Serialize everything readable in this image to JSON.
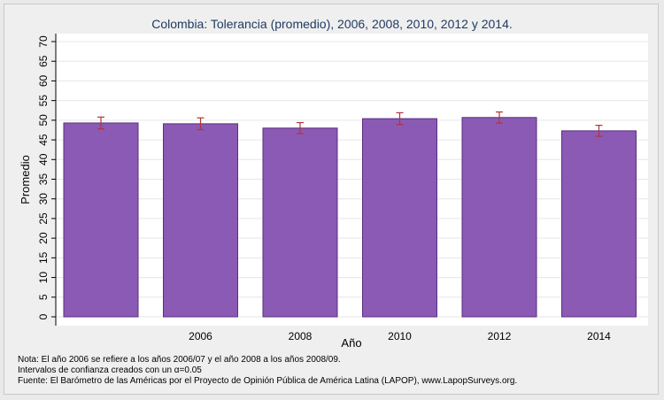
{
  "chart_data": {
    "type": "bar",
    "title": "Colombia: Tolerancia (promedio), 2006, 2008, 2010, 2012 y 2014.",
    "xlabel": "Año",
    "ylabel": "Promedio",
    "categories": [
      "",
      "2006",
      "2008",
      "2010",
      "2012",
      "2014"
    ],
    "values": [
      49.3,
      49.1,
      48.0,
      50.4,
      50.7,
      47.3
    ],
    "ci_low": [
      47.8,
      47.6,
      46.6,
      48.9,
      49.3,
      45.9
    ],
    "ci_high": [
      50.8,
      50.6,
      49.4,
      51.9,
      52.1,
      48.7
    ],
    "ylim": [
      0,
      70
    ],
    "yticks": [
      0,
      5,
      10,
      15,
      20,
      25,
      30,
      35,
      40,
      45,
      50,
      55,
      60,
      65,
      70
    ],
    "grid": true,
    "colors": {
      "bar": "#8b5ab5",
      "bar_edge": "#5a2f80",
      "error": "#b0343a",
      "plot_bg": "#ffffff",
      "grid": "#e6e6e6",
      "title": "#1f3b63"
    }
  },
  "notes": {
    "line1": "Nota: El año 2006 se refiere a los años 2006/07 y el año 2008 a los años 2008/09.",
    "line2": "Intervalos de confianza creados con un α=0.05",
    "line3": "Fuente: El Barómetro de las Américas por el Proyecto de Opinión Pública de América Latina (LAPOP), www.LapopSurveys.org."
  }
}
